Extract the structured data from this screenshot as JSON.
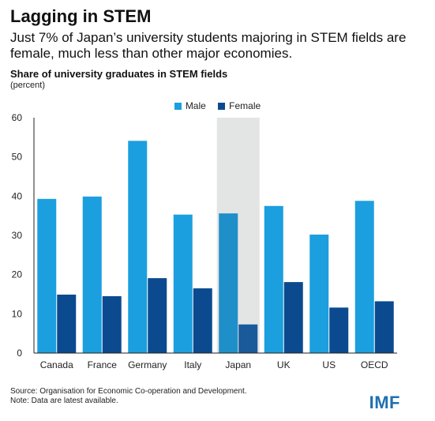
{
  "title": "Lagging in STEM",
  "subtitle": "Just 7% of Japan’s university students majoring in STEM fields are female, much less than other major economies.",
  "chart_title": "Share of university graduates in STEM fields",
  "unit": "(percent)",
  "source": "Source: Organisation for Economic Co-operation and Development.",
  "note": "Note: Data are latest available.",
  "logo": "IMF",
  "colors": {
    "male": "#1b9fdf",
    "female": "#0b4a8f",
    "male_highlight": "#1e8fc8",
    "female_highlight": "#1a5a9a",
    "highlight_bg": "#e3e4e4"
  },
  "chart_data": {
    "type": "bar",
    "categories": [
      "Canada",
      "France",
      "Germany",
      "Italy",
      "Japan",
      "UK",
      "US",
      "OECD"
    ],
    "series": [
      {
        "name": "Male",
        "values": [
          39.3,
          39.9,
          54.1,
          35.3,
          35.6,
          37.5,
          30.2,
          38.8
        ]
      },
      {
        "name": "Female",
        "values": [
          14.9,
          14.5,
          19.1,
          16.5,
          7.3,
          18.1,
          11.6,
          13.2
        ]
      }
    ],
    "highlight": "Japan",
    "ylim": [
      0,
      60
    ],
    "yticks": [
      0,
      10,
      20,
      30,
      40,
      50,
      60
    ],
    "xlabel": "",
    "ylabel": "",
    "grid": false,
    "legend": "top-center"
  }
}
